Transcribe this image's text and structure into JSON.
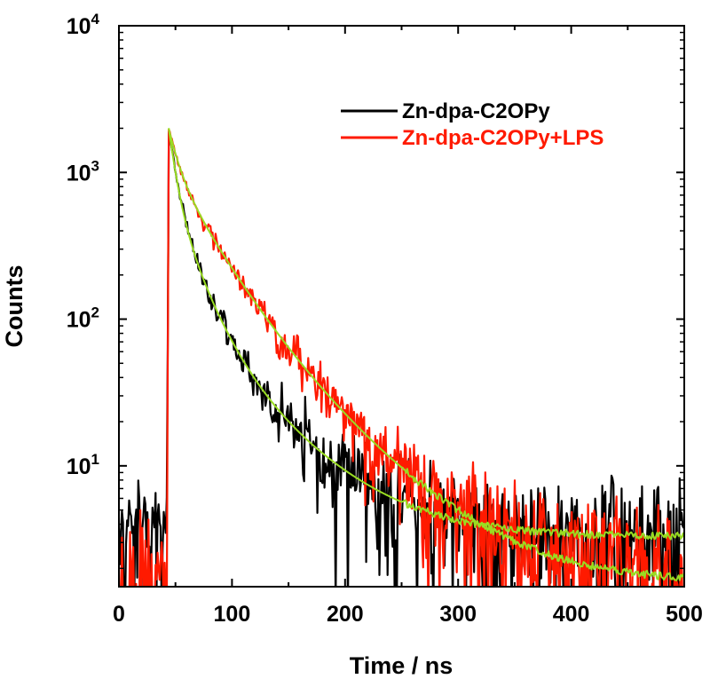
{
  "chart_data": {
    "type": "line",
    "xlabel": "Time / ns",
    "ylabel": "Counts",
    "xlim": [
      0,
      500
    ],
    "ylim": [
      1.5,
      10000
    ],
    "yscale": "log",
    "x_ticks": [
      {
        "value": 0,
        "label": "0"
      },
      {
        "value": 100,
        "label": "100"
      },
      {
        "value": 200,
        "label": "200"
      },
      {
        "value": 300,
        "label": "300"
      },
      {
        "value": 400,
        "label": "400"
      },
      {
        "value": 500,
        "label": "500"
      }
    ],
    "y_ticks": [
      {
        "value": 10,
        "base": "10",
        "exp": "1"
      },
      {
        "value": 100,
        "base": "10",
        "exp": "2"
      },
      {
        "value": 1000,
        "base": "10",
        "exp": "3"
      },
      {
        "value": 10000,
        "base": "10",
        "exp": "4"
      }
    ],
    "legend_position": "top-right",
    "series": [
      {
        "name": "Zn-dpa-C2OPy",
        "color": "#000000",
        "peak_x": 44,
        "peak_y": 2000,
        "background": 3.3,
        "decay": [
          {
            "amplitude": 1300,
            "tau_ns": 6
          },
          {
            "amplitude": 600,
            "tau_ns": 19
          },
          {
            "amplitude": 100,
            "tau_ns": 55
          }
        ]
      },
      {
        "name": "Zn-dpa-C2OPy+LPS",
        "color": "#ff1a00",
        "peak_x": 44,
        "peak_y": 2000,
        "background": 1.6,
        "decay": [
          {
            "amplitude": 900,
            "tau_ns": 8
          },
          {
            "amplitude": 900,
            "tau_ns": 30
          },
          {
            "amplitude": 200,
            "tau_ns": 62
          }
        ]
      }
    ],
    "fit_color": "#99dd22"
  }
}
